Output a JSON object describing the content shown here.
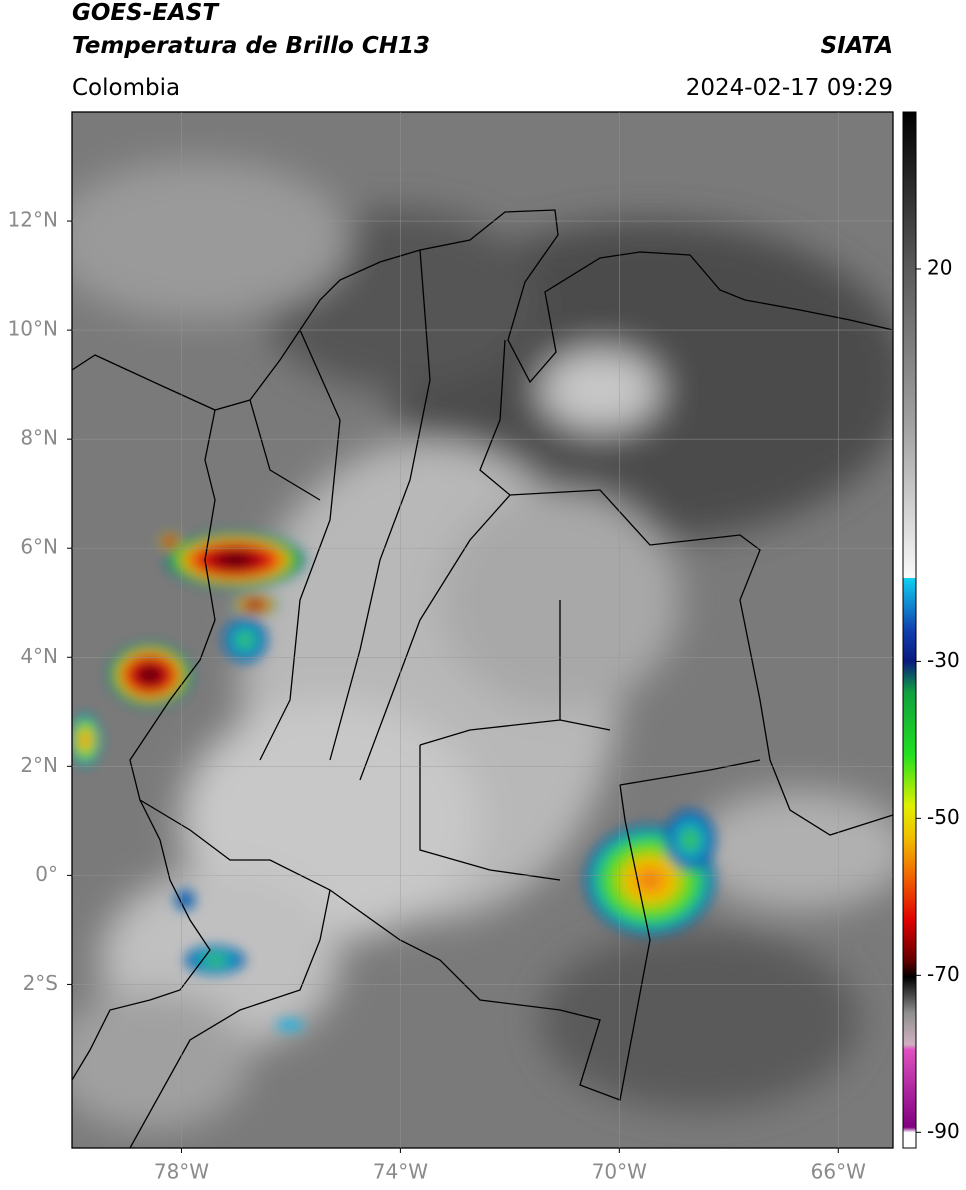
{
  "header": {
    "title": "GOES-EAST",
    "subtitle": "Temperatura de Brillo CH13",
    "region": "Colombia",
    "source": "SIATA",
    "datetime": "2024-02-17 09:29"
  },
  "map": {
    "xlim": [
      -80,
      -65
    ],
    "ylim": [
      -5,
      14
    ],
    "xticks": [
      {
        "value": -78,
        "label": "78°W"
      },
      {
        "value": -74,
        "label": "74°W"
      },
      {
        "value": -70,
        "label": "70°W"
      },
      {
        "value": -66,
        "label": "66°W"
      }
    ],
    "yticks": [
      {
        "value": 12,
        "label": "12°N"
      },
      {
        "value": 10,
        "label": "10°N"
      },
      {
        "value": 8,
        "label": "8°N"
      },
      {
        "value": 6,
        "label": "6°N"
      },
      {
        "value": 4,
        "label": "4°N"
      },
      {
        "value": 2,
        "label": "2°N"
      },
      {
        "value": 0,
        "label": "0°"
      },
      {
        "value": -2,
        "label": "2°S"
      }
    ]
  },
  "colorbar": {
    "lim": [
      -92,
      40
    ],
    "ticks": [
      20,
      -30,
      -50,
      -70,
      -90
    ]
  }
}
